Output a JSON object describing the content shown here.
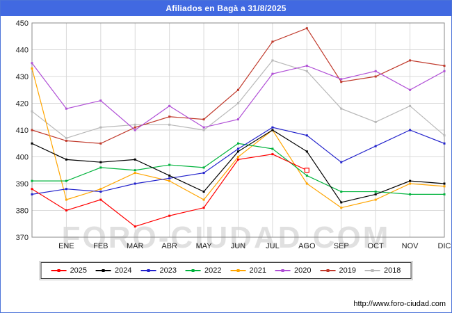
{
  "header": {
    "title": "Afiliados en Bagà a 31/8/2025"
  },
  "watermark": "FORO-CIUDAD.COM",
  "footer": {
    "url": "http://www.foro-ciudad.com"
  },
  "colors": {
    "header_bg": "#4169e1",
    "frame_border": "#4a72d8",
    "gridline": "#d9d9d9",
    "plot_border": "#888888"
  },
  "chart_data": {
    "type": "line",
    "title": "Afiliados en Bagà a 31/8/2025",
    "xlabel": "",
    "ylabel": "",
    "ylim": [
      370,
      450
    ],
    "y_ticks": [
      370,
      380,
      390,
      400,
      410,
      420,
      430,
      440,
      450
    ],
    "grid": true,
    "legend_position": "bottom",
    "x_tick_labels": [
      "ENE",
      "FEB",
      "MAR",
      "ABR",
      "MAY",
      "JUN",
      "JUL",
      "AGO",
      "SEP",
      "OCT",
      "NOV",
      "DIC"
    ],
    "x_note": "first value of each series sits on the left axis; following values fall on the monthly gridlines ENE..DIC",
    "series": [
      {
        "name": "2025",
        "color": "#ff0000",
        "end_marker": true,
        "values": [
          388,
          380,
          384,
          374,
          378,
          381,
          399,
          401,
          395
        ]
      },
      {
        "name": "2024",
        "color": "#000000",
        "values": [
          405,
          399,
          398,
          399,
          393,
          387,
          402,
          410,
          402,
          383,
          386,
          391,
          390
        ]
      },
      {
        "name": "2023",
        "color": "#2222cc",
        "values": [
          386,
          388,
          387,
          390,
          392,
          394,
          403,
          411,
          408,
          398,
          404,
          410,
          405
        ]
      },
      {
        "name": "2022",
        "color": "#00b33c",
        "values": [
          391,
          391,
          396,
          395,
          397,
          396,
          405,
          403,
          393,
          387,
          387,
          386,
          386
        ]
      },
      {
        "name": "2021",
        "color": "#ffa500",
        "values": [
          433,
          384,
          388,
          394,
          391,
          384,
          400,
          410,
          390,
          381,
          384,
          390,
          389
        ]
      },
      {
        "name": "2020",
        "color": "#b04fd6",
        "values": [
          435,
          418,
          421,
          410,
          419,
          411,
          414,
          431,
          434,
          429,
          432,
          425,
          432
        ]
      },
      {
        "name": "2019",
        "color": "#c0392b",
        "values": [
          410,
          406,
          405,
          411,
          415,
          414,
          425,
          443,
          448,
          428,
          430,
          436,
          434
        ]
      },
      {
        "name": "2018",
        "color": "#b8b8b8",
        "values": [
          417,
          407,
          411,
          412,
          412,
          410,
          420,
          436,
          432,
          418,
          413,
          419,
          408
        ]
      }
    ]
  }
}
